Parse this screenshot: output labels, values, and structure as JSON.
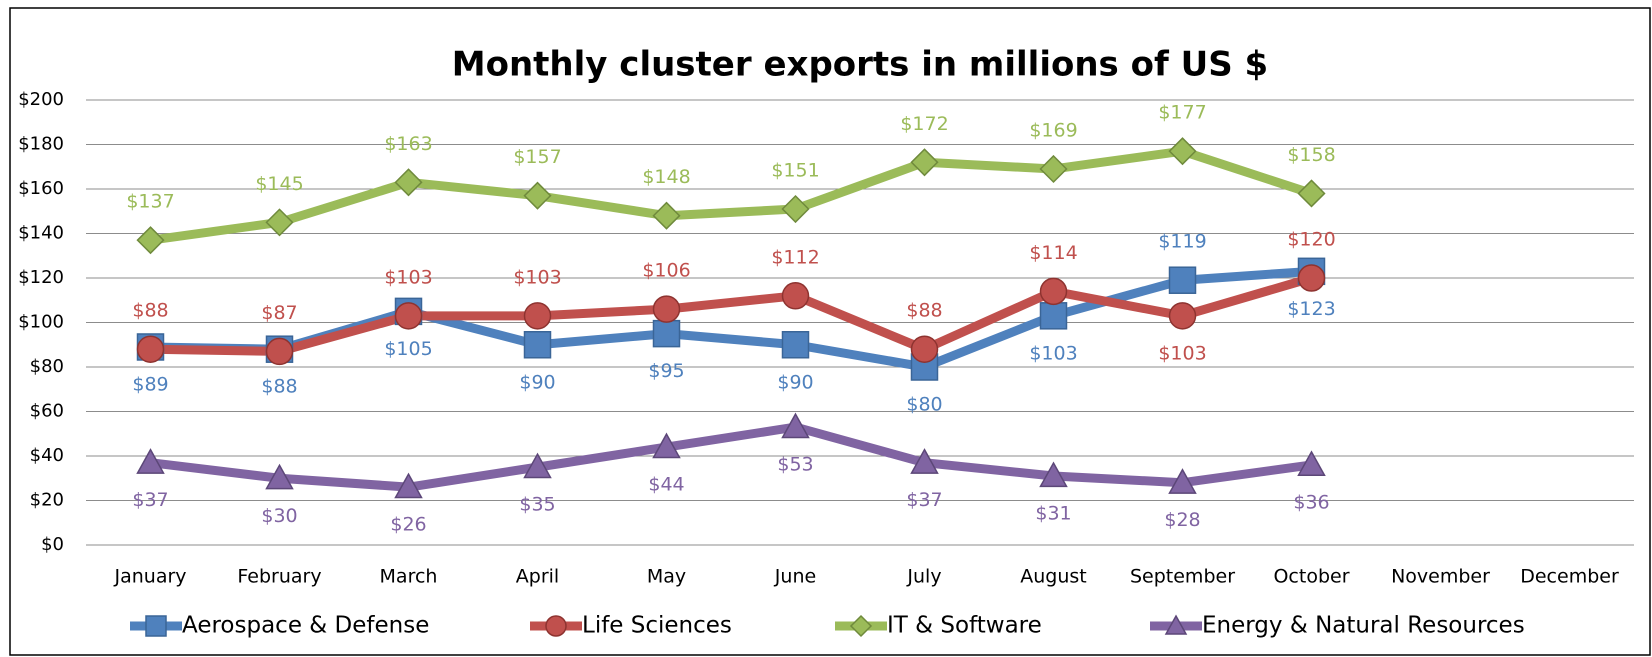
{
  "chart_data": {
    "type": "line",
    "title": "Monthly cluster exports in millions of US $",
    "categories": [
      "January",
      "February",
      "March",
      "April",
      "May",
      "June",
      "July",
      "August",
      "September",
      "October",
      "November",
      "December"
    ],
    "ylim": [
      0,
      200
    ],
    "yticks": [
      {
        "value": 0,
        "label": "$0"
      },
      {
        "value": 20,
        "label": "$20"
      },
      {
        "value": 40,
        "label": "$40"
      },
      {
        "value": 60,
        "label": "$60"
      },
      {
        "value": 80,
        "label": "$80"
      },
      {
        "value": 100,
        "label": "$100"
      },
      {
        "value": 120,
        "label": "$120"
      },
      {
        "value": 140,
        "label": "$140"
      },
      {
        "value": 160,
        "label": "$160"
      },
      {
        "value": 180,
        "label": "$180"
      },
      {
        "value": 200,
        "label": "$200"
      }
    ],
    "grid": true,
    "legend": "bottom",
    "series": [
      {
        "name": "Aerospace & Defense",
        "color": "#4f81bd",
        "marker": "square",
        "values": [
          89,
          88,
          105,
          90,
          95,
          90,
          80,
          103,
          119,
          123,
          null,
          null
        ],
        "value_labels": [
          "$89",
          "$88",
          "$105",
          "$90",
          "$95",
          "$90",
          "$80",
          "$103",
          "$119",
          "$123",
          null,
          null
        ]
      },
      {
        "name": "Life Sciences",
        "color": "#c0504d",
        "marker": "circle",
        "values": [
          88,
          87,
          103,
          103,
          106,
          112,
          88,
          114,
          103,
          120,
          null,
          null
        ],
        "value_labels": [
          "$88",
          "$87",
          "$103",
          "$103",
          "$106",
          "$112",
          "$88",
          "$114",
          "$103",
          "$120",
          null,
          null
        ]
      },
      {
        "name": "IT & Software",
        "color": "#9bbb59",
        "marker": "diamond",
        "values": [
          137,
          145,
          163,
          157,
          148,
          151,
          172,
          169,
          177,
          158,
          null,
          null
        ],
        "value_labels": [
          "$137",
          "$145",
          "$163",
          "$157",
          "$148",
          "$151",
          "$172",
          "$169",
          "$177",
          "$158",
          null,
          null
        ]
      },
      {
        "name": "Energy & Natural Resources",
        "color": "#8064a2",
        "marker": "triangle",
        "values": [
          37,
          30,
          26,
          35,
          44,
          53,
          37,
          31,
          28,
          36,
          null,
          null
        ],
        "value_labels": [
          "$37",
          "$30",
          "$26",
          "$35",
          "$44",
          "$53",
          "$37",
          "$31",
          "$28",
          "$36",
          null,
          null
        ]
      }
    ]
  }
}
